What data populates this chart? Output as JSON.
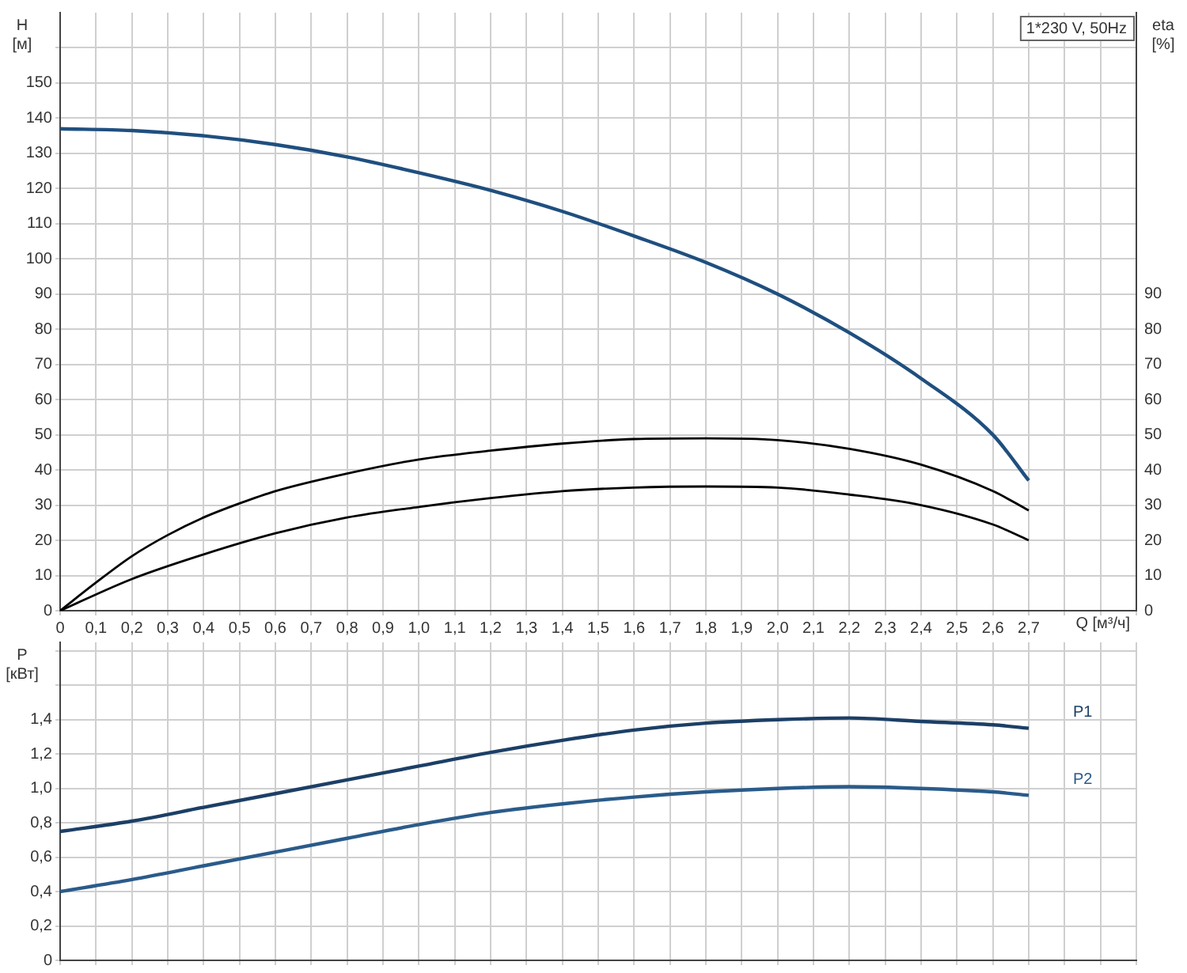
{
  "chart_data": [
    {
      "type": "line",
      "ylabel": "H [м]",
      "y2label": "eta [%]",
      "xlabel": "Q [м³/ч]",
      "annotations": [
        "1*230 V, 50Hz"
      ],
      "grid": true,
      "legend": false,
      "xlim": [
        0,
        3.0
      ],
      "xticks": [
        0,
        {
          "value": 0.1,
          "label": "0,1"
        },
        {
          "value": 0.2,
          "label": "0,2"
        },
        {
          "value": 0.3,
          "label": "0,3"
        },
        {
          "value": 0.4,
          "label": "0,4"
        },
        {
          "value": 0.5,
          "label": "0,5"
        },
        {
          "value": 0.6,
          "label": "0,6"
        },
        {
          "value": 0.7,
          "label": "0,7"
        },
        {
          "value": 0.8,
          "label": "0,8"
        },
        {
          "value": 0.9,
          "label": "0,9"
        },
        {
          "value": 1.0,
          "label": "1,0"
        },
        {
          "value": 1.1,
          "label": "1,1"
        },
        {
          "value": 1.2,
          "label": "1,2"
        },
        {
          "value": 1.3,
          "label": "1,3"
        },
        {
          "value": 1.4,
          "label": "1,4"
        },
        {
          "value": 1.5,
          "label": "1,5"
        },
        {
          "value": 1.6,
          "label": "1,6"
        },
        {
          "value": 1.7,
          "label": "1,7"
        },
        {
          "value": 1.8,
          "label": "1,8"
        },
        {
          "value": 1.9,
          "label": "1,9"
        },
        {
          "value": 2.0,
          "label": "2,0"
        },
        {
          "value": 2.1,
          "label": "2,1"
        },
        {
          "value": 2.2,
          "label": "2,2"
        },
        {
          "value": 2.3,
          "label": "2,3"
        },
        {
          "value": 2.4,
          "label": "2,4"
        },
        {
          "value": 2.5,
          "label": "2,5"
        },
        {
          "value": 2.6,
          "label": "2,6"
        },
        {
          "value": 2.7,
          "label": "2,7"
        },
        {
          "value": 2.8,
          "label": null
        },
        {
          "value": 2.9,
          "label": null
        },
        {
          "value": 3.0,
          "label": null
        }
      ],
      "ylim": [
        0,
        170
      ],
      "yticks": [
        0,
        10,
        20,
        30,
        40,
        50,
        60,
        70,
        80,
        90,
        100,
        110,
        120,
        130,
        140,
        150,
        {
          "value": 160,
          "label": null
        }
      ],
      "y2lim": [
        0,
        170
      ],
      "y2ticks": [
        0,
        10,
        20,
        30,
        40,
        50,
        60,
        70,
        80,
        90
      ],
      "series": [
        {
          "color": "#1f4f7f",
          "x": [
            0,
            0.2,
            0.4,
            0.6,
            0.8,
            1.0,
            1.2,
            1.4,
            1.6,
            1.8,
            2.0,
            2.2,
            2.4,
            2.6,
            2.7
          ],
          "values": [
            137,
            136.5,
            135,
            132.5,
            129,
            124.5,
            119.5,
            113.5,
            106.5,
            99,
            90,
            79,
            66,
            50,
            37
          ]
        },
        {
          "color": "#000000",
          "axis": "y2",
          "x": [
            0,
            0.1,
            0.2,
            0.3,
            0.4,
            0.5,
            0.6,
            0.8,
            1.0,
            1.2,
            1.4,
            1.6,
            1.8,
            2.0,
            2.2,
            2.4,
            2.6,
            2.7
          ],
          "values": [
            0,
            8,
            15.5,
            21.5,
            26.5,
            30.5,
            34,
            39,
            43,
            45.5,
            47.5,
            48.8,
            49,
            48.5,
            46,
            41.5,
            34,
            28.5
          ]
        },
        {
          "color": "#000000",
          "axis": "y2",
          "x": [
            0,
            0.2,
            0.4,
            0.6,
            0.8,
            1.0,
            1.2,
            1.4,
            1.6,
            1.8,
            2.0,
            2.2,
            2.4,
            2.6,
            2.7
          ],
          "values": [
            0,
            9,
            16,
            22,
            26.5,
            29.5,
            32,
            34,
            35,
            35.3,
            35,
            33,
            30,
            24.5,
            20
          ]
        }
      ]
    },
    {
      "type": "line",
      "ylabel": "P [кВт]",
      "grid": true,
      "legend": false,
      "tick_labels": "y",
      "xlim": [
        0,
        3.0
      ],
      "xticks": [
        0,
        0.1,
        0.2,
        0.3,
        0.4,
        0.5,
        0.6,
        0.7,
        0.8,
        0.9,
        1.0,
        1.1,
        1.2,
        1.3,
        1.4,
        1.5,
        1.6,
        1.7,
        1.8,
        1.9,
        2.0,
        2.1,
        2.2,
        2.3,
        2.4,
        2.5,
        2.6,
        2.7,
        2.8,
        2.9,
        3.0
      ],
      "ylim": [
        0,
        1.85
      ],
      "yticks": [
        0,
        {
          "value": 0.2,
          "label": "0,2"
        },
        {
          "value": 0.4,
          "label": "0,4"
        },
        {
          "value": 0.6,
          "label": "0,6"
        },
        {
          "value": 0.8,
          "label": "0,8"
        },
        {
          "value": 1.0,
          "label": "1,0"
        },
        {
          "value": 1.2,
          "label": "1,2"
        },
        {
          "value": 1.4,
          "label": "1,4"
        },
        {
          "value": 1.6,
          "label": null
        },
        {
          "value": 1.8,
          "label": null
        }
      ],
      "series": [
        {
          "name": "P1",
          "color": "#1c3f66",
          "x": [
            0,
            0.2,
            0.4,
            0.6,
            0.8,
            1.0,
            1.2,
            1.4,
            1.6,
            1.8,
            2.0,
            2.2,
            2.4,
            2.6,
            2.7
          ],
          "values": [
            0.75,
            0.81,
            0.89,
            0.97,
            1.05,
            1.13,
            1.21,
            1.28,
            1.34,
            1.38,
            1.4,
            1.41,
            1.39,
            1.37,
            1.35
          ]
        },
        {
          "name": "P2",
          "color": "#2a5b8a",
          "x": [
            0,
            0.2,
            0.4,
            0.6,
            0.8,
            1.0,
            1.2,
            1.4,
            1.6,
            1.8,
            2.0,
            2.2,
            2.4,
            2.6,
            2.7
          ],
          "values": [
            0.4,
            0.47,
            0.55,
            0.63,
            0.71,
            0.79,
            0.86,
            0.91,
            0.95,
            0.98,
            1.0,
            1.01,
            1.0,
            0.98,
            0.96
          ]
        }
      ]
    }
  ]
}
